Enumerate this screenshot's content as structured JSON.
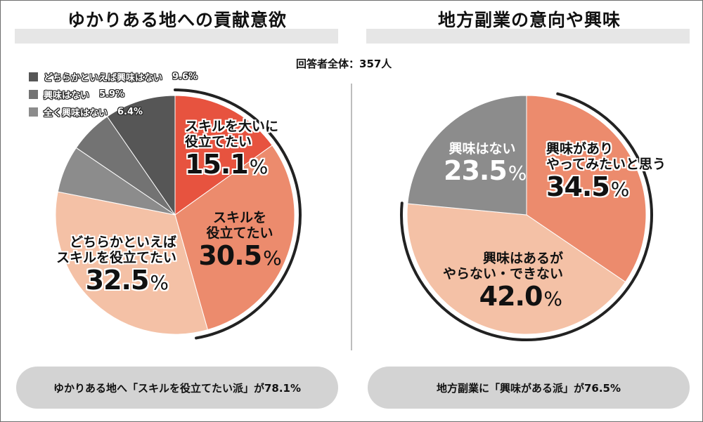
{
  "header": {
    "respondents": "回答者全体：357人"
  },
  "colors": {
    "dark": "#565656",
    "mid": "#737373",
    "light": "#8c8c8c",
    "red": "#e7533f",
    "salmon": "#ec8b6d",
    "peach": "#f4c1a6",
    "bar": "#e6e6e6",
    "pill": "#d3d3d3"
  },
  "chart_data": [
    {
      "type": "pie",
      "title": "ゆかりある地への貢献意欲",
      "categories": [
        "スキルを大いに役立てたい",
        "スキルを役立てたい",
        "どちらかといえばスキルを役立てたい",
        "全く興味はない",
        "興味はない",
        "どちらかといえば興味はない"
      ],
      "labels": [
        {
          "lines": [
            "スキルを大いに",
            "役立てたい"
          ],
          "value": "15.1"
        },
        {
          "lines": [
            "スキルを",
            "役立てたい"
          ],
          "value": "30.5"
        },
        {
          "lines": [
            "どちらかといえば",
            "スキルを役立てたい"
          ],
          "value": "32.5"
        }
      ],
      "values": [
        15.1,
        30.5,
        32.5,
        6.4,
        5.9,
        9.6
      ],
      "colors": [
        "#e7533f",
        "#ec8b6d",
        "#f4c1a6",
        "#8c8c8c",
        "#737373",
        "#565656"
      ],
      "legend": [
        {
          "label": "どちらかといえば興味はない",
          "value": "9.6%",
          "color": "#565656"
        },
        {
          "label": "興味はない",
          "value": "5.9%",
          "color": "#737373"
        },
        {
          "label": "全く興味はない",
          "value": "6.4%",
          "color": "#8c8c8c"
        }
      ],
      "legend_position": "top-left",
      "summary": "ゆかりある地へ「スキルを役立てたい派」が78.1%"
    },
    {
      "type": "pie",
      "title": "地方副業の意向や興味",
      "categories": [
        "興味がありやってみたいと思う",
        "興味はあるがやらない・できない",
        "興味はない"
      ],
      "labels": [
        {
          "lines": [
            "興味があり",
            "やってみたいと思う"
          ],
          "value": "34.5"
        },
        {
          "lines": [
            "興味はあるが",
            "やらない・できない"
          ],
          "value": "42.0"
        },
        {
          "lines": [
            "興味はない"
          ],
          "value": "23.5"
        }
      ],
      "values": [
        34.5,
        42.0,
        23.5
      ],
      "colors": [
        "#ec8b6d",
        "#f4c1a6",
        "#8c8c8c"
      ],
      "summary": "地方副業に「興味がある派」が76.5%"
    }
  ]
}
